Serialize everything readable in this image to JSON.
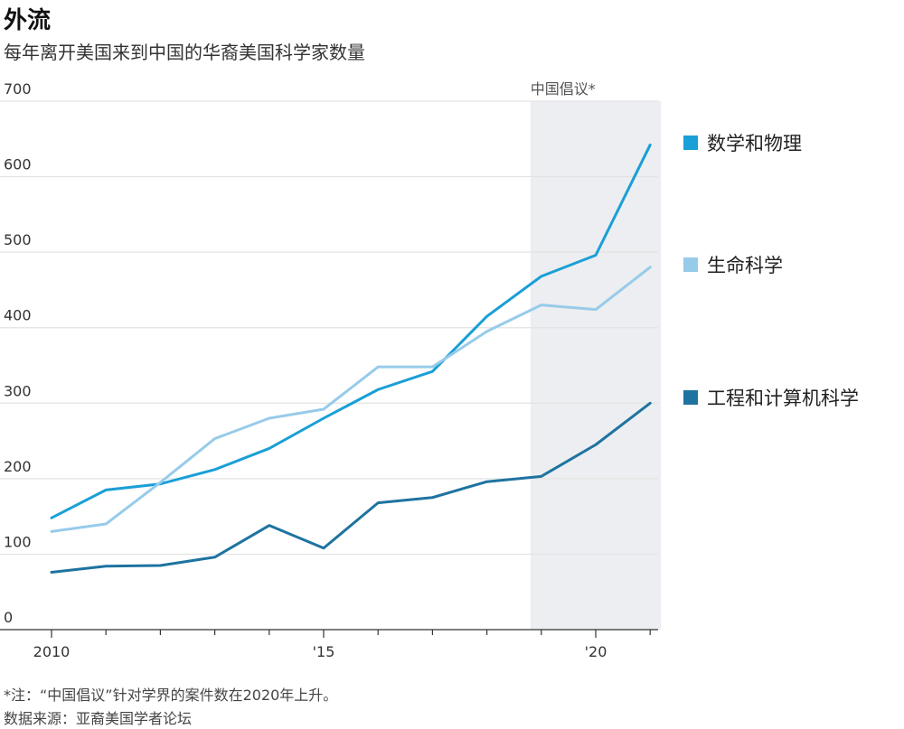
{
  "header": {
    "title": "外流",
    "subtitle": "每年离开美国来到中国的华裔美国科学家数量"
  },
  "footnotes": {
    "note": "*注：“中国倡议”针对学界的案件数在2020年上升。",
    "source": "数据来源：亚裔美国学者论坛"
  },
  "chart_data": {
    "type": "line",
    "x": [
      2010,
      2011,
      2012,
      2013,
      2014,
      2015,
      2016,
      2017,
      2018,
      2019,
      2020,
      2021
    ],
    "xlim": [
      2010,
      2021.2
    ],
    "ylim": [
      0,
      700
    ],
    "yticks": [
      0,
      100,
      200,
      300,
      400,
      500,
      600,
      700
    ],
    "y_tick_labels": [
      "0",
      "100",
      "200",
      "300",
      "400",
      "500",
      "600",
      "700"
    ],
    "xticks": [
      2010,
      2015,
      2020
    ],
    "x_tick_labels": [
      "2010",
      "'15",
      "'20"
    ],
    "grid": true,
    "legend_placement": "right",
    "shaded_region": {
      "x_start": 2018.8,
      "x_end": 2021.2,
      "label": "中国倡议*"
    },
    "series": [
      {
        "name": "数学和物理",
        "color": "#1a9fd6",
        "values": [
          148,
          185,
          193,
          212,
          240,
          280,
          318,
          342,
          415,
          468,
          496,
          642
        ]
      },
      {
        "name": "生命科学",
        "color": "#97cbea",
        "values": [
          130,
          140,
          195,
          253,
          280,
          292,
          348,
          348,
          395,
          430,
          424,
          480
        ]
      },
      {
        "name": "工程和计算机科学",
        "color": "#1e73a0",
        "values": [
          76,
          84,
          85,
          96,
          138,
          108,
          168,
          175,
          196,
          203,
          245,
          300
        ]
      }
    ]
  }
}
